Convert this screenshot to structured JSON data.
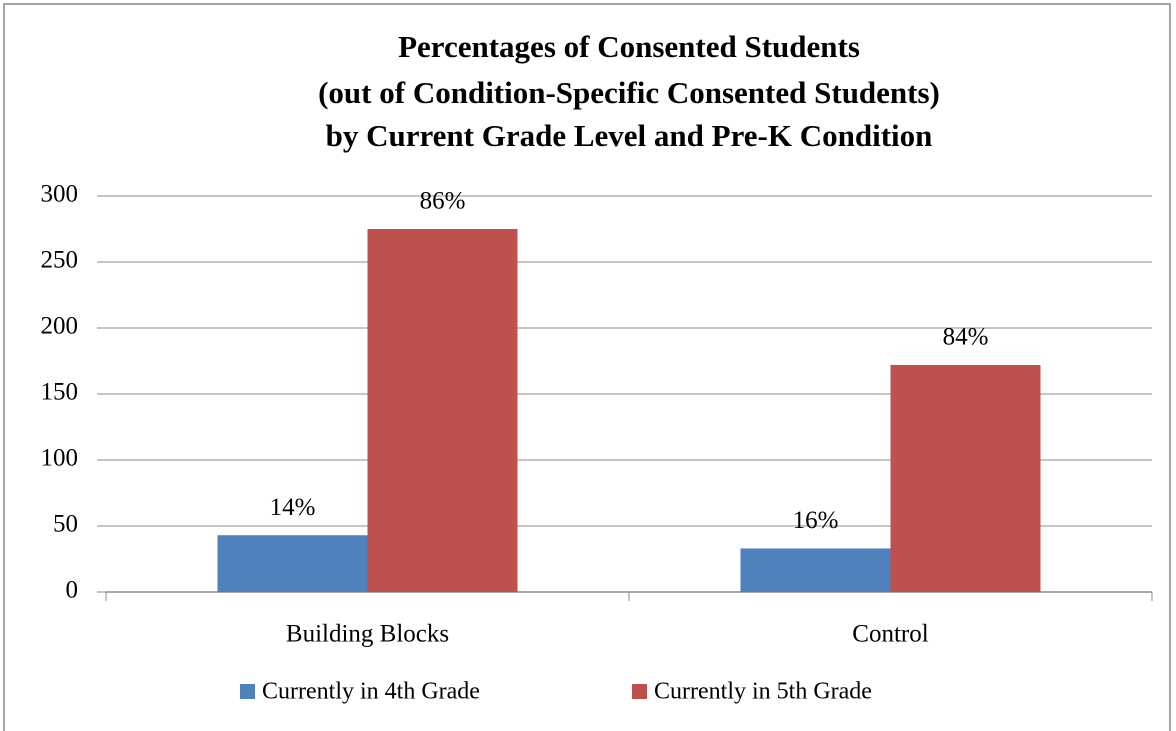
{
  "chart_data": {
    "type": "bar",
    "title": [
      "Percentages of Consented Students",
      "(out of Condition-Specific Consented Students)",
      "by Current Grade Level and Pre-K Condition"
    ],
    "categories": [
      "Building Blocks",
      "Control"
    ],
    "series": [
      {
        "name": "Currently in 4th Grade",
        "color": "#4f81bd",
        "values": [
          43,
          33
        ],
        "value_labels": [
          "14%",
          "16%"
        ]
      },
      {
        "name": "Currently in 5th Grade",
        "color": "#c0504d",
        "values": [
          275,
          172
        ],
        "value_labels": [
          "86%",
          "84%"
        ]
      }
    ],
    "ylim": [
      0,
      300
    ],
    "yticks": [
      0,
      50,
      100,
      150,
      200,
      250,
      300
    ],
    "grid": true,
    "legend": "bottom"
  }
}
